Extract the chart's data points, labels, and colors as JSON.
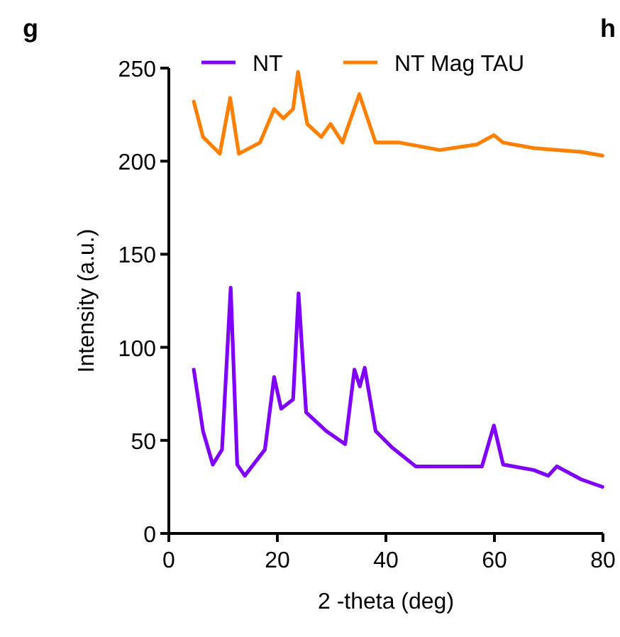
{
  "chart_data": {
    "type": "line",
    "xlabel": "2 -theta (deg)",
    "ylabel": "Intensity (a.u.)",
    "annotations": [
      "g",
      "h"
    ],
    "xlim": [
      0,
      80
    ],
    "ylim": [
      0,
      250
    ],
    "xticks": [
      0,
      20,
      40,
      60,
      80
    ],
    "yticks": [
      0,
      50,
      100,
      150,
      200,
      250
    ],
    "legend": "top",
    "grid": false,
    "marker": "none",
    "line_style": "solid",
    "series": [
      {
        "name": "NT",
        "color": "#7f00ff",
        "x": [
          4.6,
          6.3,
          8.1,
          9.8,
          11.4,
          12.6,
          14,
          17.7,
          19.4,
          20.7,
          22.9,
          23.9,
          25.3,
          29,
          32.5,
          34.2,
          35.2,
          36.1,
          38.1,
          41.2,
          45.5,
          51.6,
          57.7,
          59.9,
          61.6,
          67.3,
          69.9,
          71.5,
          76,
          79.9
        ],
        "values": [
          88,
          55,
          37,
          45,
          132,
          37,
          31,
          45,
          84,
          67,
          72,
          129,
          65,
          55,
          48,
          88,
          79,
          89,
          55,
          46,
          36,
          36,
          36,
          58,
          37,
          34,
          31,
          36,
          29,
          25
        ]
      },
      {
        "name": "NT Mag TAU",
        "color": "#ff8000",
        "x": [
          4.6,
          6.3,
          9.4,
          11.3,
          12.9,
          16.8,
          19.4,
          21.1,
          22.9,
          23.8,
          25.5,
          28.1,
          29.8,
          32,
          35.1,
          38.1,
          42.5,
          49.9,
          56.8,
          59.9,
          61.6,
          67.3,
          76,
          79.9
        ],
        "values": [
          232,
          213,
          204,
          234,
          204,
          210,
          228,
          223,
          228,
          248,
          220,
          213,
          220,
          210,
          236,
          210,
          210,
          206,
          209,
          214,
          210,
          207,
          205,
          203
        ]
      }
    ]
  }
}
